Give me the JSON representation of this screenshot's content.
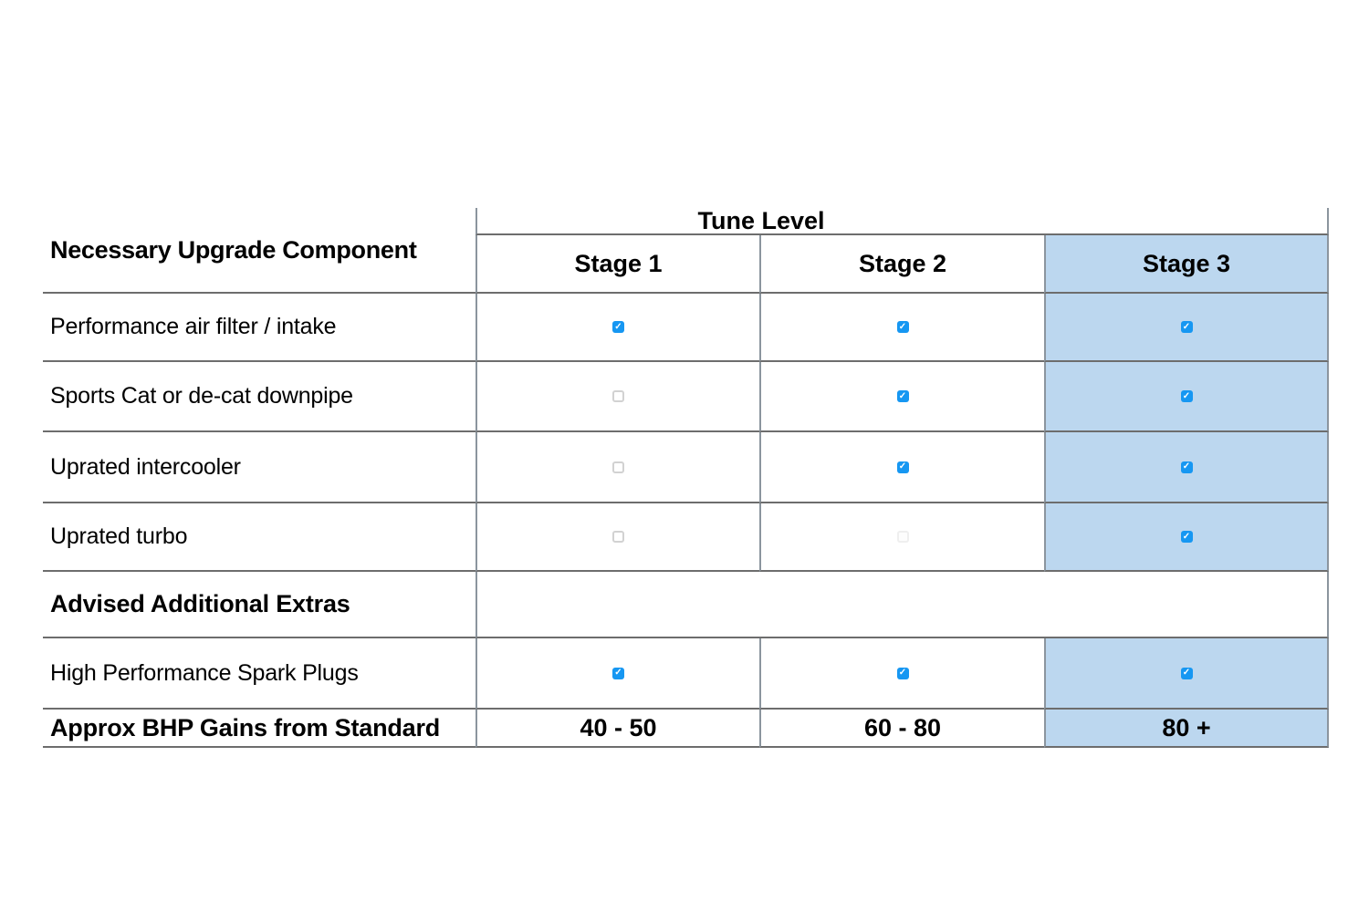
{
  "table": {
    "corner_header": "Necessary Upgrade Component",
    "tune_level_header": "Tune Level",
    "stage_headers": [
      "Stage 1",
      "Stage 2",
      "Stage 3"
    ],
    "component_rows": [
      {
        "label": "Performance air filter / intake",
        "stages": [
          "checked",
          "checked",
          "checked"
        ]
      },
      {
        "label": "Sports Cat or de-cat downpipe",
        "stages": [
          "unchecked",
          "checked",
          "checked"
        ]
      },
      {
        "label": "Uprated intercooler",
        "stages": [
          "unchecked",
          "checked",
          "checked"
        ]
      },
      {
        "label": "Uprated turbo",
        "stages": [
          "unchecked",
          "unchecked-faint",
          "checked"
        ]
      }
    ],
    "section_header": "Advised Additional Extras",
    "extras_rows": [
      {
        "label": "High Performance Spark Plugs",
        "stages": [
          "checked",
          "checked",
          "checked"
        ]
      }
    ],
    "footer_label": "Approx BHP Gains from Standard",
    "footer_values": [
      "40 - 50",
      "60 - 80",
      "80 +"
    ],
    "checkmark_glyph": "✓",
    "colors": {
      "stage3_highlight": "#BCD7EF",
      "checkbox_blue": "#1697F2",
      "grid_line_horizontal": "#6d6d6d",
      "grid_line_vertical": "#8b959e"
    }
  }
}
